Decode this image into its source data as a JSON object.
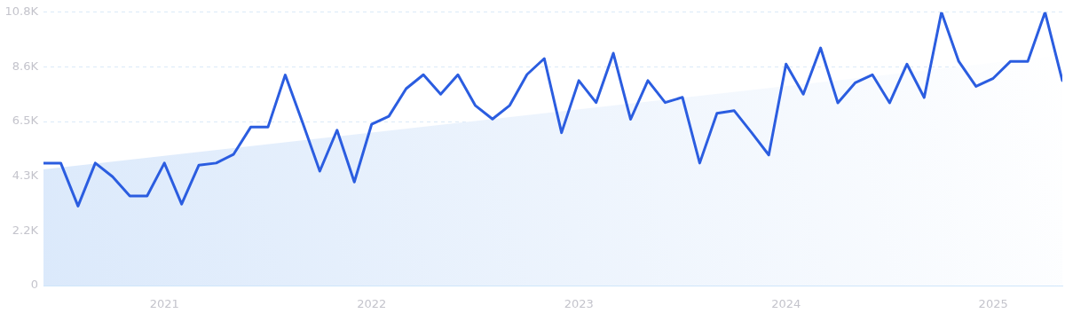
{
  "chart_data": {
    "type": "line",
    "x": [
      "2020-06",
      "2020-07",
      "2020-08",
      "2020-09",
      "2020-10",
      "2020-11",
      "2020-12",
      "2021-01",
      "2021-02",
      "2021-03",
      "2021-04",
      "2021-05",
      "2021-06",
      "2021-07",
      "2021-08",
      "2021-09",
      "2021-10",
      "2021-11",
      "2021-12",
      "2022-01",
      "2022-02",
      "2022-03",
      "2022-04",
      "2022-05",
      "2022-06",
      "2022-07",
      "2022-08",
      "2022-09",
      "2022-10",
      "2022-11",
      "2022-12",
      "2023-01",
      "2023-02",
      "2023-03",
      "2023-04",
      "2023-05",
      "2023-06",
      "2023-07",
      "2023-08",
      "2023-09",
      "2023-10",
      "2023-11",
      "2023-12",
      "2024-01",
      "2024-02",
      "2024-03",
      "2024-04",
      "2024-05",
      "2024-06",
      "2024-07",
      "2024-08",
      "2024-09",
      "2024-10",
      "2024-11",
      "2024-12",
      "2025-01",
      "2025-02",
      "2025-03",
      "2025-04",
      "2025-05"
    ],
    "series": [
      {
        "type": "area",
        "color": "#dbe9fb",
        "x": [
          "2020-06",
          "2025-05"
        ],
        "values": [
          4590,
          9110
        ]
      },
      {
        "type": "line",
        "color": "#2b5de0",
        "values": [
          4840,
          4840,
          3140,
          4840,
          4300,
          3540,
          3540,
          4840,
          3220,
          4760,
          4840,
          5180,
          6260,
          6260,
          8320,
          6450,
          4520,
          6140,
          4090,
          6370,
          6690,
          7780,
          8330,
          7560,
          8330,
          7120,
          6580,
          7120,
          8340,
          8970,
          6040,
          8100,
          7230,
          9180,
          6570,
          8100,
          7230,
          7440,
          4840,
          6810,
          6910,
          6050,
          5160,
          8750,
          7560,
          9390,
          7220,
          8010,
          8330,
          7220,
          8750,
          7430,
          10800,
          8860,
          7870,
          8190,
          8860,
          8860,
          10800,
          8100
        ]
      }
    ],
    "xlim": [
      "2020-06",
      "2025-05"
    ],
    "xticks": [
      {
        "value": "2021-01",
        "label": "2021"
      },
      {
        "value": "2022-01",
        "label": "2022"
      },
      {
        "value": "2023-01",
        "label": "2023"
      },
      {
        "value": "2024-01",
        "label": "2024"
      },
      {
        "value": "2025-01",
        "label": "2025"
      }
    ],
    "ylim": [
      0,
      10800
    ],
    "yticks": [
      0,
      {
        "value": 2160,
        "label": "2.2K"
      },
      {
        "value": 4320,
        "label": "4.3K"
      },
      {
        "value": 6480,
        "label": "6.5K"
      },
      {
        "value": 8640,
        "label": "8.6K"
      },
      {
        "value": 10800,
        "label": "10.8K"
      }
    ],
    "grid": "y",
    "legend": false,
    "marker": "none",
    "line_style": "solid"
  }
}
